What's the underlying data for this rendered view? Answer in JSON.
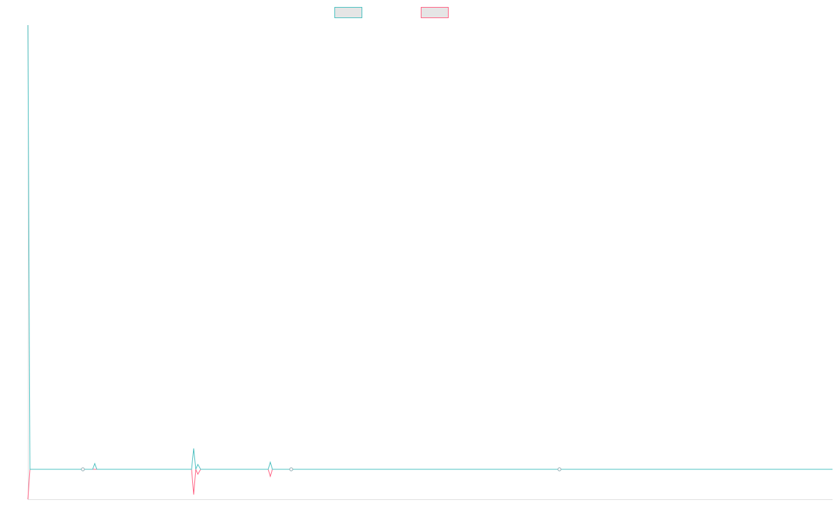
{
  "chart_data": {
    "type": "line",
    "title": "",
    "xlabel": "",
    "ylabel": "",
    "xlim": [
      0,
      1155
    ],
    "ylim": [
      -6.75,
      100
    ],
    "grid": false,
    "legend_placement": "top-center",
    "x": [
      0,
      3,
      79,
      93,
      96,
      99,
      235,
      238,
      241,
      244,
      248,
      345,
      348,
      351,
      378,
      763,
      1155
    ],
    "series": [
      {
        "color": "#4bc0c0",
        "values": [
          100,
          0,
          0,
          0,
          1.3,
          0,
          0,
          4.7,
          0,
          1.1,
          0,
          0,
          1.6,
          0,
          0,
          0,
          0
        ]
      },
      {
        "color": "#ff6384",
        "values": [
          -6.75,
          0,
          0,
          0,
          0,
          0,
          0,
          -5.7,
          0,
          -1.1,
          0,
          0,
          -1.6,
          0,
          0,
          0,
          0
        ]
      }
    ]
  }
}
